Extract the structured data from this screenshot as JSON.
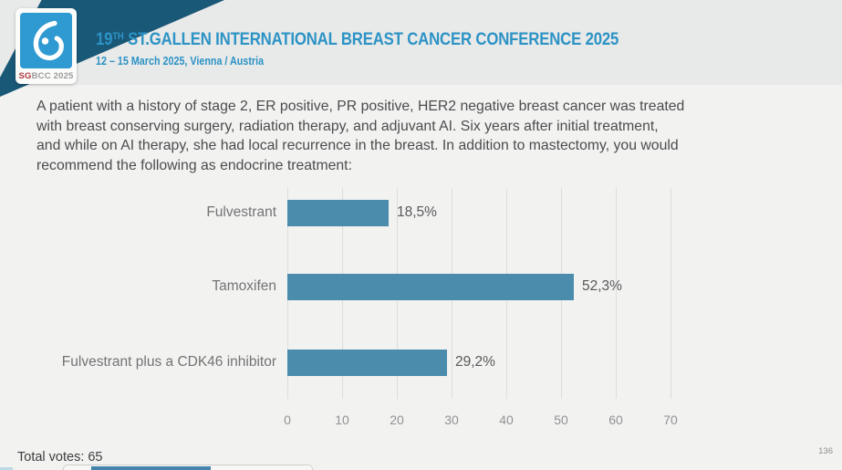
{
  "header": {
    "title_prefix": "19",
    "title_sup": "TH",
    "title_rest": " ST.GALLEN INTERNATIONAL BREAST CANCER CONFERENCE 2025",
    "subtitle": "12 – 15 March 2025, Vienna / Austria",
    "logo": {
      "icon": "sgbcc-drop-icon",
      "badge_sg": "SG",
      "badge_rest": "BCC 2025"
    }
  },
  "question": {
    "lines": [
      "A patient with a history of stage 2, ER positive, PR positive, HER2 negative breast cancer was treated",
      "with breast conserving surgery, radiation therapy, and adjuvant AI.  Six years after initial treatment,",
      "and while on AI therapy, she had local recurrence in the breast.  In addition to mastectomy, you would",
      "recommend the following as endocrine treatment:"
    ]
  },
  "chart_data": {
    "type": "bar",
    "orientation": "horizontal",
    "categories": [
      "Fulvestrant",
      "Tamoxifen",
      "Fulvestrant plus a CDK46 inhibitor"
    ],
    "values": [
      18.5,
      52.3,
      29.2
    ],
    "value_labels": [
      "18,5%",
      "52,3%",
      "29,2%"
    ],
    "x_ticks": [
      0,
      10,
      20,
      30,
      40,
      50,
      60,
      70
    ],
    "xlim": [
      0,
      70
    ],
    "grid": true,
    "legend": false,
    "title": "",
    "xlabel": "",
    "ylabel": "",
    "bar_color": "#4b8cad"
  },
  "footer": {
    "total_votes": "Total votes: 65",
    "page_number": "136"
  },
  "colors": {
    "accent_blue": "#2c93c5",
    "banner_navy": "#1a5878",
    "bar": "#4b8cad",
    "logo_blue": "#2e9ad1",
    "sg_red": "#b03a3f",
    "header_bg": "#e8e9e9",
    "body_bg": "#f2f2f1"
  }
}
